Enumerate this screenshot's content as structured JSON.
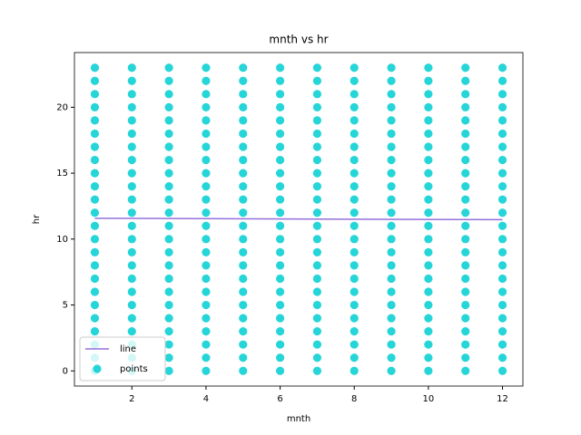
{
  "chart_data": {
    "type": "scatter",
    "title": "mnth vs hr",
    "xlabel": "mnth",
    "ylabel": "hr",
    "xlim": [
      0.45,
      12.55
    ],
    "ylim": [
      -1.15,
      24.15
    ],
    "xticks": [
      2,
      4,
      6,
      8,
      10,
      12
    ],
    "yticks": [
      0,
      5,
      10,
      15,
      20
    ],
    "grid": false,
    "legend": "lower left",
    "series": [
      {
        "name": "line",
        "type": "line",
        "color": "#9370db",
        "x": [
          1,
          12
        ],
        "values": [
          11.58,
          11.47
        ]
      },
      {
        "name": "points",
        "type": "scatter",
        "color": "#00ced1",
        "x": [
          1,
          1,
          1,
          1,
          1,
          1,
          1,
          1,
          1,
          1,
          1,
          1,
          1,
          1,
          1,
          1,
          1,
          1,
          1,
          1,
          1,
          1,
          1,
          1,
          2,
          2,
          2,
          2,
          2,
          2,
          2,
          2,
          2,
          2,
          2,
          2,
          2,
          2,
          2,
          2,
          2,
          2,
          2,
          2,
          2,
          2,
          2,
          2,
          3,
          3,
          3,
          3,
          3,
          3,
          3,
          3,
          3,
          3,
          3,
          3,
          3,
          3,
          3,
          3,
          3,
          3,
          3,
          3,
          3,
          3,
          3,
          3,
          4,
          4,
          4,
          4,
          4,
          4,
          4,
          4,
          4,
          4,
          4,
          4,
          4,
          4,
          4,
          4,
          4,
          4,
          4,
          4,
          4,
          4,
          4,
          4,
          5,
          5,
          5,
          5,
          5,
          5,
          5,
          5,
          5,
          5,
          5,
          5,
          5,
          5,
          5,
          5,
          5,
          5,
          5,
          5,
          5,
          5,
          5,
          5,
          6,
          6,
          6,
          6,
          6,
          6,
          6,
          6,
          6,
          6,
          6,
          6,
          6,
          6,
          6,
          6,
          6,
          6,
          6,
          6,
          6,
          6,
          6,
          6,
          7,
          7,
          7,
          7,
          7,
          7,
          7,
          7,
          7,
          7,
          7,
          7,
          7,
          7,
          7,
          7,
          7,
          7,
          7,
          7,
          7,
          7,
          7,
          7,
          8,
          8,
          8,
          8,
          8,
          8,
          8,
          8,
          8,
          8,
          8,
          8,
          8,
          8,
          8,
          8,
          8,
          8,
          8,
          8,
          8,
          8,
          8,
          8,
          9,
          9,
          9,
          9,
          9,
          9,
          9,
          9,
          9,
          9,
          9,
          9,
          9,
          9,
          9,
          9,
          9,
          9,
          9,
          9,
          9,
          9,
          9,
          9,
          10,
          10,
          10,
          10,
          10,
          10,
          10,
          10,
          10,
          10,
          10,
          10,
          10,
          10,
          10,
          10,
          10,
          10,
          10,
          10,
          10,
          10,
          10,
          10,
          11,
          11,
          11,
          11,
          11,
          11,
          11,
          11,
          11,
          11,
          11,
          11,
          11,
          11,
          11,
          11,
          11,
          11,
          11,
          11,
          11,
          11,
          11,
          11,
          12,
          12,
          12,
          12,
          12,
          12,
          12,
          12,
          12,
          12,
          12,
          12,
          12,
          12,
          12,
          12,
          12,
          12,
          12,
          12,
          12,
          12,
          12,
          12
        ],
        "values": [
          0,
          1,
          2,
          3,
          4,
          5,
          6,
          7,
          8,
          9,
          10,
          11,
          12,
          13,
          14,
          15,
          16,
          17,
          18,
          19,
          20,
          21,
          22,
          23,
          0,
          1,
          2,
          3,
          4,
          5,
          6,
          7,
          8,
          9,
          10,
          11,
          12,
          13,
          14,
          15,
          16,
          17,
          18,
          19,
          20,
          21,
          22,
          23,
          0,
          1,
          2,
          3,
          4,
          5,
          6,
          7,
          8,
          9,
          10,
          11,
          12,
          13,
          14,
          15,
          16,
          17,
          18,
          19,
          20,
          21,
          22,
          23,
          0,
          1,
          2,
          3,
          4,
          5,
          6,
          7,
          8,
          9,
          10,
          11,
          12,
          13,
          14,
          15,
          16,
          17,
          18,
          19,
          20,
          21,
          22,
          23,
          0,
          1,
          2,
          3,
          4,
          5,
          6,
          7,
          8,
          9,
          10,
          11,
          12,
          13,
          14,
          15,
          16,
          17,
          18,
          19,
          20,
          21,
          22,
          23,
          0,
          1,
          2,
          3,
          4,
          5,
          6,
          7,
          8,
          9,
          10,
          11,
          12,
          13,
          14,
          15,
          16,
          17,
          18,
          19,
          20,
          21,
          22,
          23,
          0,
          1,
          2,
          3,
          4,
          5,
          6,
          7,
          8,
          9,
          10,
          11,
          12,
          13,
          14,
          15,
          16,
          17,
          18,
          19,
          20,
          21,
          22,
          23,
          0,
          1,
          2,
          3,
          4,
          5,
          6,
          7,
          8,
          9,
          10,
          11,
          12,
          13,
          14,
          15,
          16,
          17,
          18,
          19,
          20,
          21,
          22,
          23,
          0,
          1,
          2,
          3,
          4,
          5,
          6,
          7,
          8,
          9,
          10,
          11,
          12,
          13,
          14,
          15,
          16,
          17,
          18,
          19,
          20,
          21,
          22,
          23,
          0,
          1,
          2,
          3,
          4,
          5,
          6,
          7,
          8,
          9,
          10,
          11,
          12,
          13,
          14,
          15,
          16,
          17,
          18,
          19,
          20,
          21,
          22,
          23,
          0,
          1,
          2,
          3,
          4,
          5,
          6,
          7,
          8,
          9,
          10,
          11,
          12,
          13,
          14,
          15,
          16,
          17,
          18,
          19,
          20,
          21,
          22,
          23,
          0,
          1,
          2,
          3,
          4,
          5,
          6,
          7,
          8,
          9,
          10,
          11,
          12,
          13,
          14,
          15,
          16,
          17,
          18,
          19,
          20,
          21,
          22,
          23
        ]
      }
    ]
  }
}
